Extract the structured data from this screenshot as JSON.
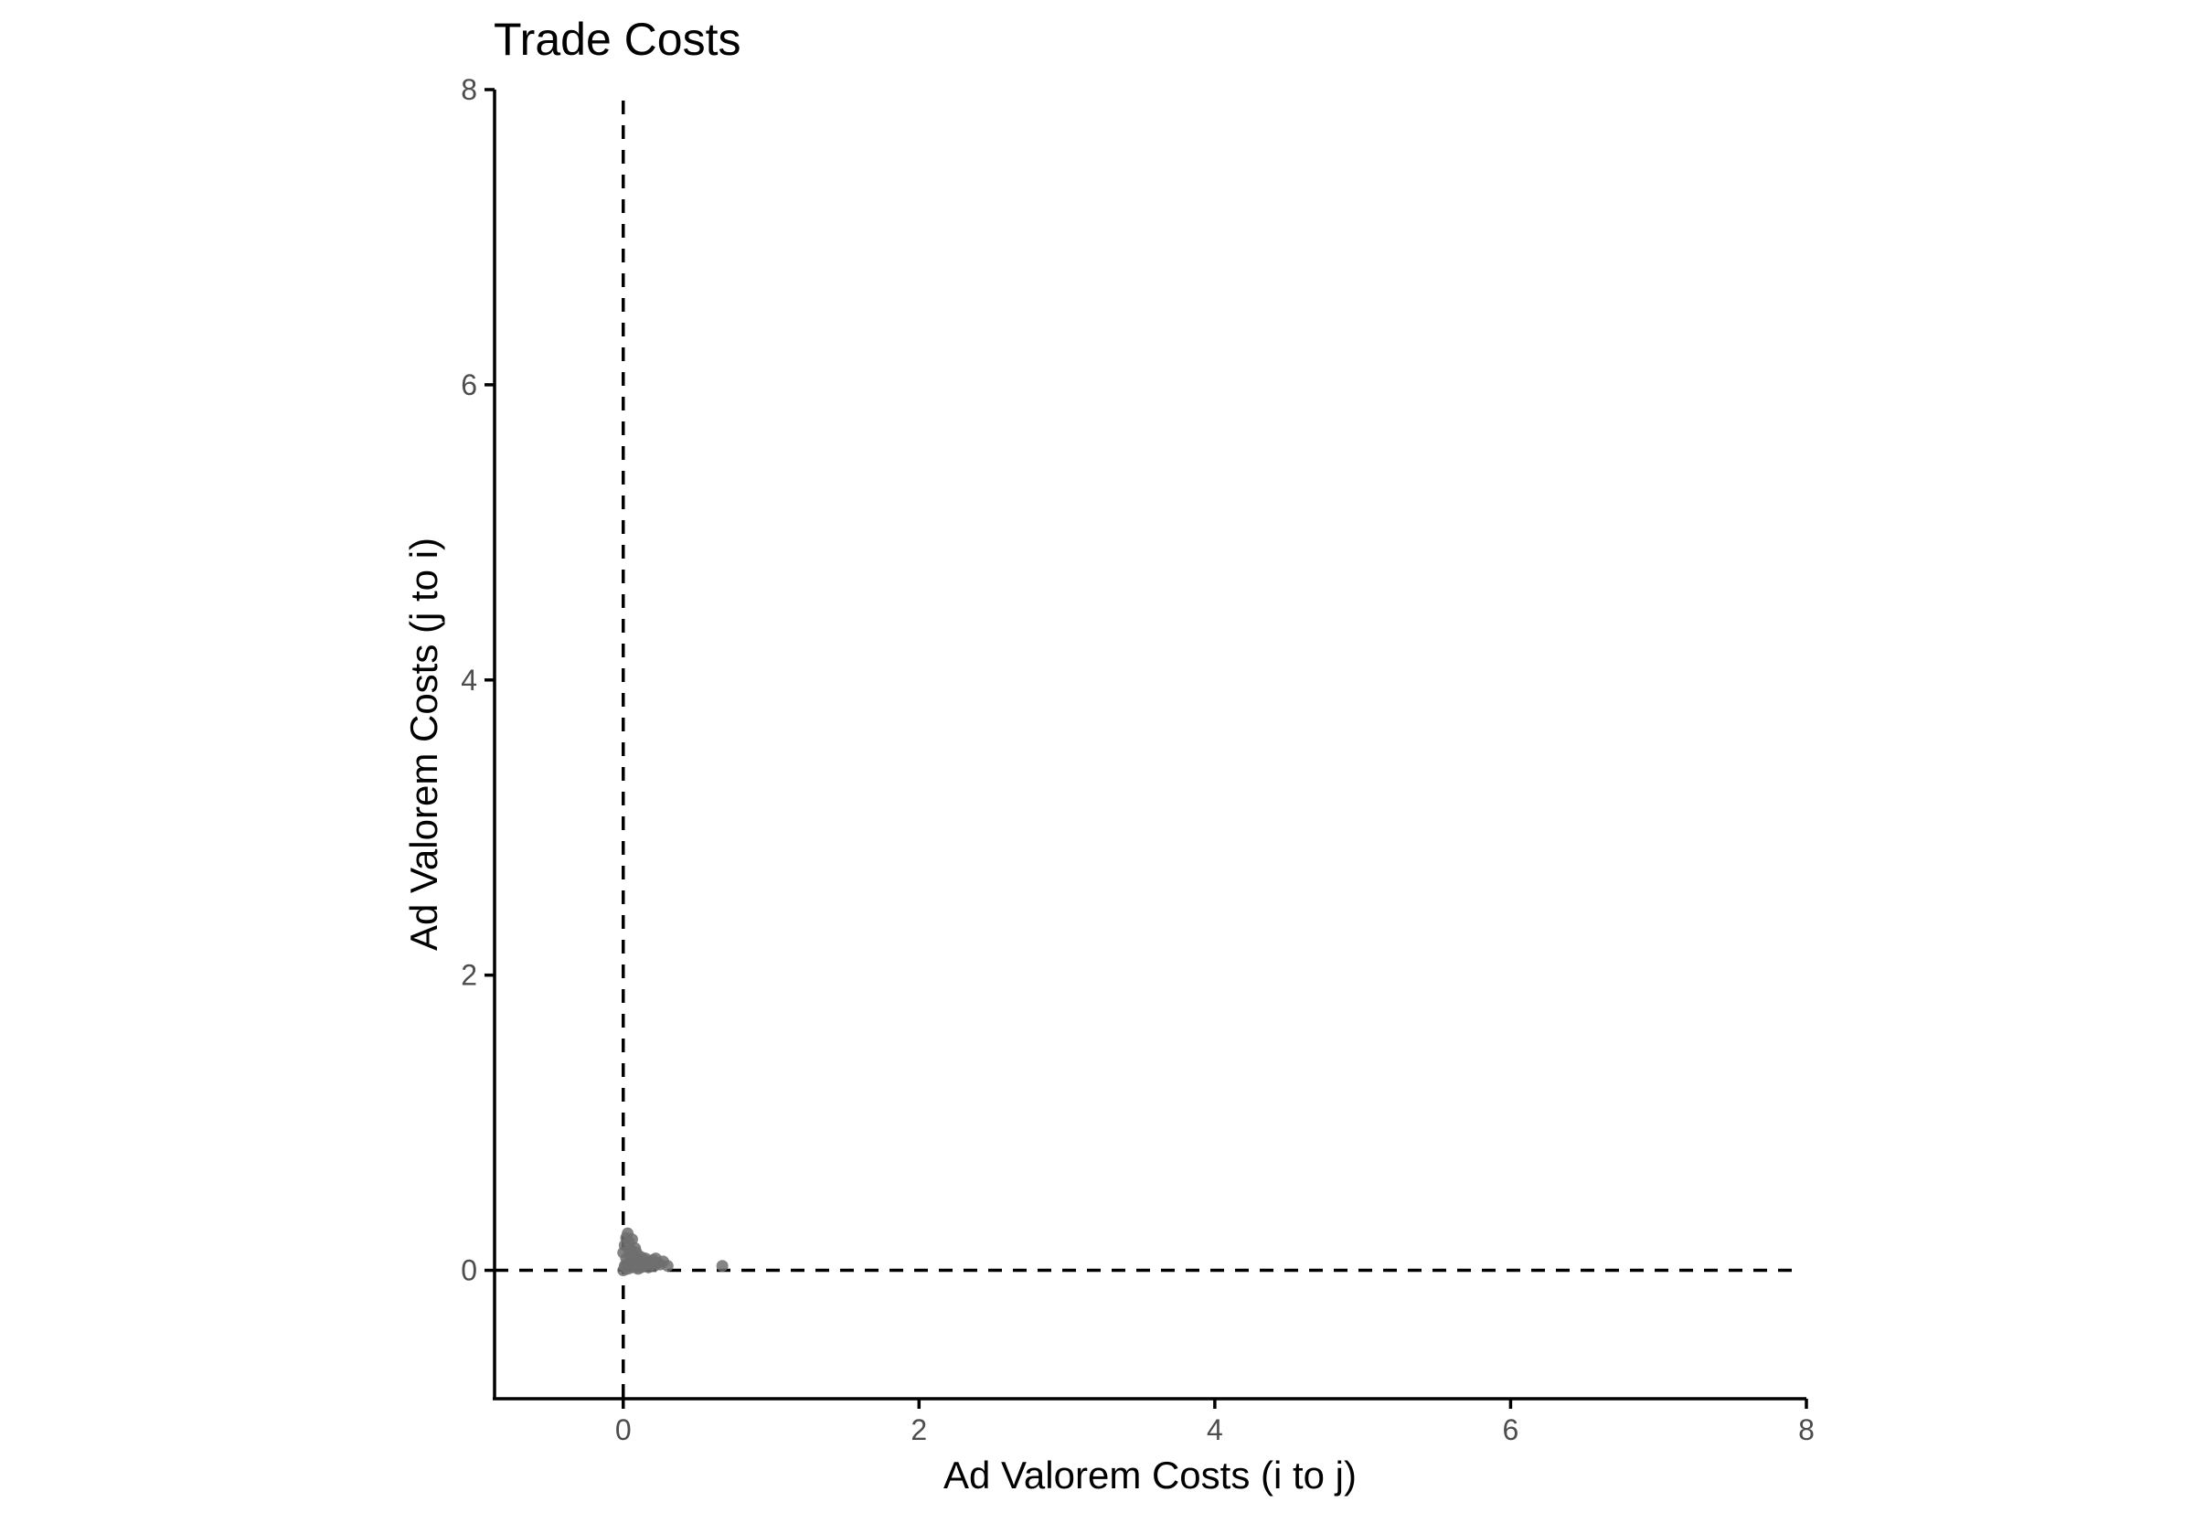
{
  "chart_data": {
    "type": "scatter",
    "title": "Trade Costs",
    "xlabel": "Ad Valorem Costs (i to j)",
    "ylabel": "Ad Valorem Costs (j to i)",
    "xlim": [
      -0.87,
      8.0
    ],
    "ylim": [
      -0.87,
      8.0
    ],
    "x_ticks": [
      0,
      2,
      4,
      6,
      8
    ],
    "y_ticks": [
      0,
      2,
      4,
      6,
      8
    ],
    "grid": false,
    "legend": "none",
    "reference_lines": {
      "x": 0,
      "y": 0,
      "style": "dashed"
    },
    "point_color": "#6e6e6e",
    "series": [
      {
        "values": [
          {
            "x": 0.0,
            "y": 0.0
          },
          {
            "x": 0.01,
            "y": 0.03
          },
          {
            "x": 0.02,
            "y": 0.08
          },
          {
            "x": 0.0,
            "y": 0.12
          },
          {
            "x": 0.01,
            "y": 0.17
          },
          {
            "x": 0.02,
            "y": 0.22
          },
          {
            "x": 0.03,
            "y": 0.25
          },
          {
            "x": 0.04,
            "y": 0.19
          },
          {
            "x": 0.05,
            "y": 0.14
          },
          {
            "x": 0.06,
            "y": 0.21
          },
          {
            "x": 0.07,
            "y": 0.1
          },
          {
            "x": 0.08,
            "y": 0.05
          },
          {
            "x": 0.09,
            "y": 0.02
          },
          {
            "x": 0.1,
            "y": 0.07
          },
          {
            "x": 0.11,
            "y": 0.04
          },
          {
            "x": 0.12,
            "y": 0.09
          },
          {
            "x": 0.13,
            "y": 0.06
          },
          {
            "x": 0.14,
            "y": 0.03
          },
          {
            "x": 0.15,
            "y": 0.08
          },
          {
            "x": 0.16,
            "y": 0.05
          },
          {
            "x": 0.17,
            "y": 0.02
          },
          {
            "x": 0.18,
            "y": 0.06
          },
          {
            "x": 0.19,
            "y": 0.04
          },
          {
            "x": 0.2,
            "y": 0.07
          },
          {
            "x": 0.21,
            "y": 0.03
          },
          {
            "x": 0.22,
            "y": 0.08
          },
          {
            "x": 0.23,
            "y": 0.05
          },
          {
            "x": 0.25,
            "y": 0.04
          },
          {
            "x": 0.27,
            "y": 0.06
          },
          {
            "x": 0.3,
            "y": 0.03
          },
          {
            "x": 0.03,
            "y": 0.01
          },
          {
            "x": 0.05,
            "y": 0.06
          },
          {
            "x": 0.04,
            "y": 0.11
          },
          {
            "x": 0.08,
            "y": 0.15
          },
          {
            "x": 0.06,
            "y": 0.02
          },
          {
            "x": 0.1,
            "y": 0.01
          },
          {
            "x": 0.02,
            "y": 0.04
          },
          {
            "x": 0.12,
            "y": 0.02
          },
          {
            "x": 0.14,
            "y": 0.07
          },
          {
            "x": 0.09,
            "y": 0.12
          },
          {
            "x": 0.67,
            "y": 0.03
          }
        ]
      }
    ]
  }
}
